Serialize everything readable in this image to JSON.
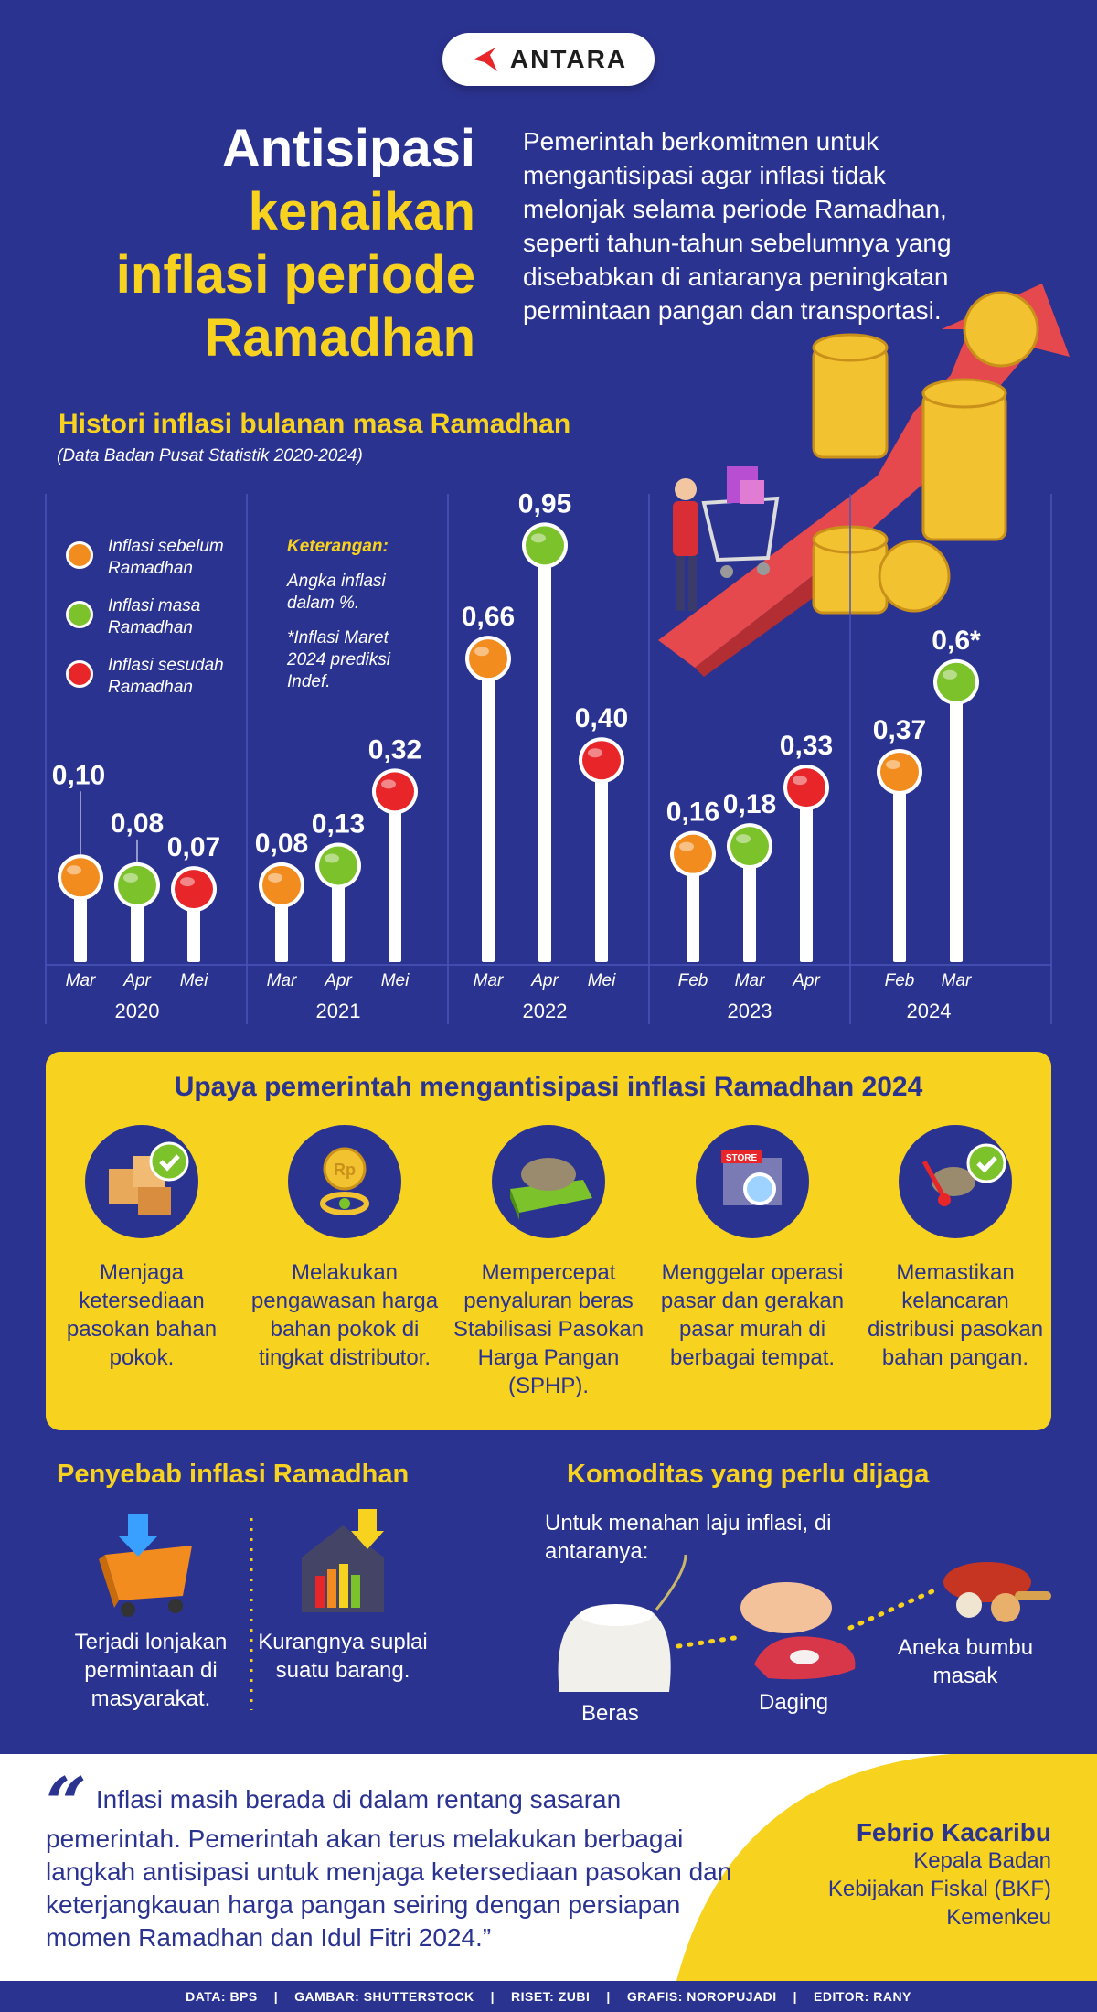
{
  "brand": {
    "logo_text": "ANTARA"
  },
  "title": {
    "line1": "Antisipasi",
    "line2": "kenaikan",
    "line3": "inflasi periode",
    "line4": "Ramadhan"
  },
  "intro": "Pemerintah berkomitmen untuk mengantisipasi agar inflasi tidak melonjak selama periode Ramadhan, seperti tahun-tahun sebelumnya yang disebabkan di antaranya peningkatan permintaan pangan dan transportasi.",
  "history": {
    "title": "Histori inflasi bulanan masa Ramadhan",
    "subtitle": "(Data Badan Pusat Statistik 2020-2024)",
    "legend": [
      {
        "label": "Inflasi sebelum Ramadhan",
        "color": "#f28c1e"
      },
      {
        "label": "Inflasi masa Ramadhan",
        "color": "#7cc22a"
      },
      {
        "label": "Inflasi sesudah Ramadhan",
        "color": "#e8262a"
      }
    ],
    "keterangan": {
      "heading": "Keterangan:",
      "note1": "Angka inflasi dalam %.",
      "note2": "*Inflasi Maret 2024 prediksi Indef."
    }
  },
  "chart_data": {
    "type": "bar",
    "title": "Histori inflasi bulanan masa Ramadhan",
    "ylabel": "",
    "groups": [
      {
        "year": "2020",
        "points": [
          {
            "month": "Mar",
            "value": 0.1,
            "label": "0,10",
            "phase": "before"
          },
          {
            "month": "Apr",
            "value": 0.08,
            "label": "0,08",
            "phase": "during"
          },
          {
            "month": "Mei",
            "value": 0.07,
            "label": "0,07",
            "phase": "after"
          }
        ]
      },
      {
        "year": "2021",
        "points": [
          {
            "month": "Mar",
            "value": 0.08,
            "label": "0,08",
            "phase": "before"
          },
          {
            "month": "Apr",
            "value": 0.13,
            "label": "0,13",
            "phase": "during"
          },
          {
            "month": "Mei",
            "value": 0.32,
            "label": "0,32",
            "phase": "after"
          }
        ]
      },
      {
        "year": "2022",
        "points": [
          {
            "month": "Mar",
            "value": 0.66,
            "label": "0,66",
            "phase": "before"
          },
          {
            "month": "Apr",
            "value": 0.95,
            "label": "0,95",
            "phase": "during"
          },
          {
            "month": "Mei",
            "value": 0.4,
            "label": "0,40",
            "phase": "after"
          }
        ]
      },
      {
        "year": "2023",
        "points": [
          {
            "month": "Feb",
            "value": 0.16,
            "label": "0,16",
            "phase": "before"
          },
          {
            "month": "Mar",
            "value": 0.18,
            "label": "0,18",
            "phase": "during"
          },
          {
            "month": "Apr",
            "value": 0.33,
            "label": "0,33",
            "phase": "after"
          }
        ]
      },
      {
        "year": "2024",
        "points": [
          {
            "month": "Feb",
            "value": 0.37,
            "label": "0,37",
            "phase": "before"
          },
          {
            "month": "Mar",
            "value": 0.6,
            "label": "0,6*",
            "phase": "during"
          }
        ]
      }
    ],
    "ylim": [
      0,
      1.0
    ],
    "grid": false,
    "colors": {
      "before": "#f28c1e",
      "during": "#7cc22a",
      "after": "#e8262a"
    }
  },
  "upaya": {
    "title": "Upaya pemerintah mengantisipasi inflasi Ramadhan 2024",
    "items": [
      {
        "icon": "boxes-check-icon",
        "label": "Menjaga ketersediaan pasokan bahan pokok."
      },
      {
        "icon": "coin-magnifier-icon",
        "label": "Melakukan pengawasan harga bahan pokok di tingkat distributor."
      },
      {
        "icon": "rice-money-icon",
        "label": "Mempercepat penyaluran beras Stabilisasi Pasokan Harga Pangan (SPHP)."
      },
      {
        "icon": "store-icon",
        "label": "Menggelar operasi pasar dan gerakan pasar murah di berbagai tempat."
      },
      {
        "icon": "distribution-check-icon",
        "label": "Memastikan kelancaran distribusi pasokan bahan pangan."
      }
    ]
  },
  "penyebab": {
    "title": "Penyebab inflasi Ramadhan",
    "items": [
      {
        "icon": "cart-demand-icon",
        "label": "Terjadi lonjakan permintaan di masyarakat."
      },
      {
        "icon": "house-supply-icon",
        "label": "Kurangnya suplai suatu barang."
      }
    ]
  },
  "komoditas": {
    "title": "Komoditas yang perlu dijaga",
    "subtitle": "Untuk menahan laju inflasi, di antaranya:",
    "items": [
      {
        "icon": "rice-sack-icon",
        "label": "Beras"
      },
      {
        "icon": "meat-icon",
        "label": "Daging"
      },
      {
        "icon": "spices-icon",
        "label": "Aneka bumbu masak"
      }
    ]
  },
  "quote": {
    "mark": "“",
    "text": "Inflasi masih berada di dalam rentang sasaran pemerintah. Pemerintah akan terus melakukan berbagai langkah antisipasi untuk menjaga ketersediaan pasokan dan keterjangkauan harga pangan seiring dengan persiapan momen Ramadhan dan Idul Fitri 2024.”",
    "speaker_name": "Febrio Kacaribu",
    "speaker_role1": "Kepala Badan",
    "speaker_role2": "Kebijakan Fiskal (BKF)",
    "speaker_role3": "Kemenkeu"
  },
  "credits": {
    "data": "DATA: BPS",
    "gambar": "GAMBAR: SHUTTERSTOCK",
    "riset": "RISET: ZUBI",
    "grafis": "GRAFIS: NOROPUJADI",
    "editor": "EDITOR: RANY",
    "sep": "|"
  }
}
